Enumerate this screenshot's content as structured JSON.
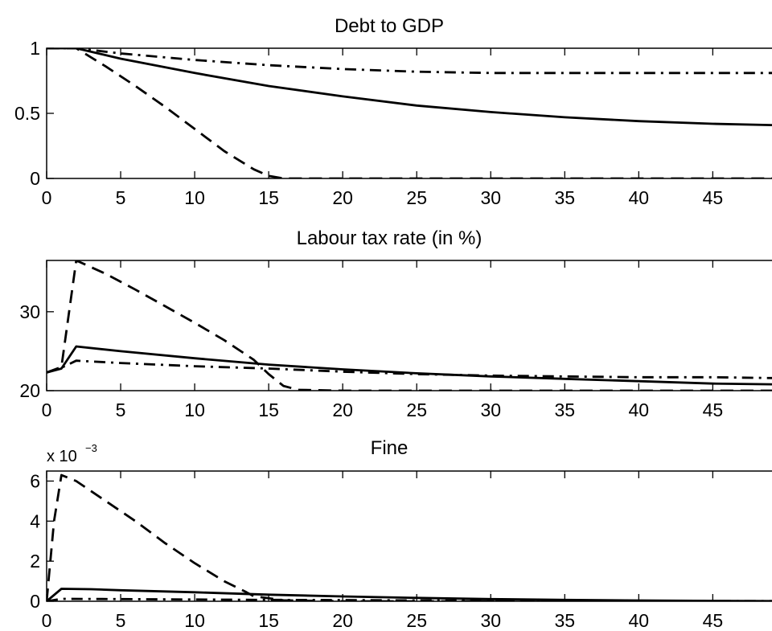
{
  "chart_data": [
    {
      "type": "line",
      "title": "Debt to GDP",
      "xlim": [
        0,
        49
      ],
      "ylim": [
        0,
        1
      ],
      "xticks": [
        0,
        5,
        10,
        15,
        20,
        25,
        30,
        35,
        40,
        45
      ],
      "yticks": [
        0,
        0.5,
        1
      ],
      "ytick_labels": [
        "0",
        "0.5",
        "1"
      ],
      "exponent_label": "",
      "series": [
        {
          "style": "solid",
          "x": [
            0,
            2,
            5,
            10,
            15,
            20,
            25,
            30,
            35,
            40,
            45,
            49
          ],
          "y": [
            1,
            1,
            0.92,
            0.81,
            0.71,
            0.63,
            0.56,
            0.51,
            0.47,
            0.44,
            0.42,
            0.41
          ]
        },
        {
          "style": "dashed",
          "x": [
            0,
            2,
            4,
            6,
            8,
            10,
            12,
            14,
            15,
            16,
            17,
            20,
            30,
            40,
            49
          ],
          "y": [
            1,
            1,
            0.86,
            0.71,
            0.55,
            0.38,
            0.21,
            0.07,
            0.02,
            0,
            0,
            0,
            0,
            0,
            0
          ]
        },
        {
          "style": "dashdot",
          "x": [
            0,
            2,
            5,
            10,
            15,
            20,
            25,
            30,
            35,
            40,
            45,
            49
          ],
          "y": [
            1,
            1,
            0.96,
            0.91,
            0.87,
            0.84,
            0.82,
            0.81,
            0.81,
            0.81,
            0.81,
            0.81
          ]
        }
      ]
    },
    {
      "type": "line",
      "title": "Labour tax rate (in %)",
      "xlim": [
        0,
        49
      ],
      "ylim": [
        20,
        36.5
      ],
      "xticks": [
        0,
        5,
        10,
        15,
        20,
        25,
        30,
        35,
        40,
        45
      ],
      "yticks": [
        20,
        30
      ],
      "ytick_labels": [
        "20",
        "30"
      ],
      "exponent_label": "",
      "series": [
        {
          "style": "solid",
          "x": [
            0,
            1,
            2,
            5,
            10,
            15,
            20,
            25,
            30,
            35,
            40,
            45,
            49
          ],
          "y": [
            22.3,
            22.8,
            25.6,
            25.0,
            24.1,
            23.3,
            22.7,
            22.2,
            21.8,
            21.5,
            21.2,
            20.9,
            20.8
          ]
        },
        {
          "style": "dashed",
          "x": [
            0,
            1,
            2,
            4,
            6,
            8,
            10,
            12,
            14,
            15,
            16,
            17,
            20,
            30,
            40,
            49
          ],
          "y": [
            22.3,
            23.0,
            36.5,
            34.8,
            32.8,
            30.7,
            28.6,
            26.4,
            23.9,
            22.1,
            20.6,
            20.1,
            20.0,
            20.0,
            20.0,
            20.0
          ]
        },
        {
          "style": "dashdot",
          "x": [
            0,
            1,
            2,
            5,
            10,
            15,
            20,
            25,
            30,
            35,
            40,
            45,
            49
          ],
          "y": [
            22.3,
            22.9,
            23.8,
            23.5,
            23.1,
            22.8,
            22.4,
            22.1,
            21.9,
            21.8,
            21.7,
            21.7,
            21.6
          ]
        }
      ]
    },
    {
      "type": "line",
      "title": "Fine",
      "xlim": [
        0,
        49
      ],
      "ylim": [
        0,
        6.5
      ],
      "xticks": [
        0,
        5,
        10,
        15,
        20,
        25,
        30,
        35,
        40,
        45
      ],
      "yticks": [
        0,
        2,
        4,
        6
      ],
      "ytick_labels": [
        "0",
        "2",
        "4",
        "6"
      ],
      "exponent_label": "x 10",
      "exponent_sup": "−3",
      "series": [
        {
          "style": "solid",
          "x": [
            0,
            1,
            3,
            5,
            10,
            15,
            20,
            25,
            30,
            35,
            40,
            45,
            49
          ],
          "y": [
            0,
            0.62,
            0.6,
            0.55,
            0.45,
            0.33,
            0.24,
            0.17,
            0.11,
            0.07,
            0.04,
            0.02,
            0.01
          ]
        },
        {
          "style": "dashed",
          "x": [
            0,
            0.5,
            1,
            2,
            4,
            6,
            8,
            10,
            12,
            13.5,
            14,
            16,
            20,
            30,
            40,
            49
          ],
          "y": [
            0,
            4.0,
            6.3,
            6.0,
            5.0,
            4.0,
            2.9,
            1.9,
            1.0,
            0.45,
            0.25,
            0.05,
            0,
            0,
            0,
            0
          ]
        },
        {
          "style": "dashdot",
          "x": [
            0,
            1,
            5,
            10,
            15,
            20,
            25,
            30,
            35,
            40,
            45,
            49
          ],
          "y": [
            0,
            0.12,
            0.11,
            0.09,
            0.07,
            0.06,
            0.04,
            0.03,
            0.02,
            0.02,
            0.01,
            0.01
          ]
        }
      ]
    }
  ]
}
